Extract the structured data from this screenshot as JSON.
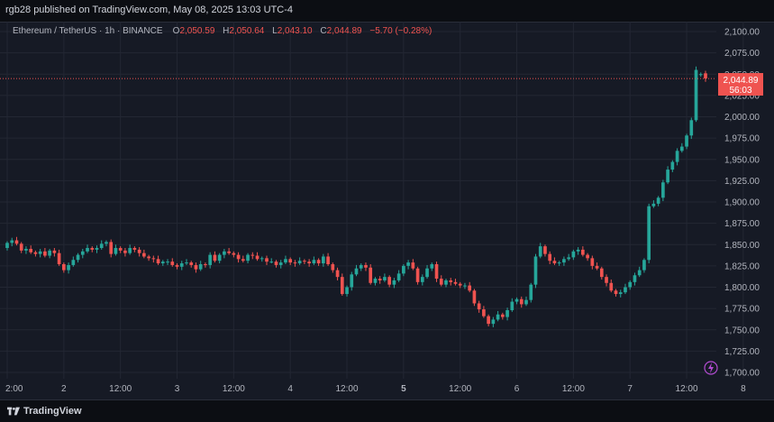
{
  "header": {
    "published": "rgb28 published on TradingView.com, May 08, 2025 13:03 UTC-4"
  },
  "symbol": {
    "name": "Ethereum / TetherUS · 1h · BINANCE",
    "o_label": "O",
    "o_value": "2,050.59",
    "h_label": "H",
    "h_value": "2,050.64",
    "l_label": "L",
    "l_value": "2,043.10",
    "c_label": "C",
    "c_value": "2,044.89",
    "change": "−5.70 (−0.28%)"
  },
  "price_tag": {
    "price": "2,044.89",
    "countdown": "56:03"
  },
  "footer": {
    "brand": "TradingView"
  },
  "colors": {
    "up": "#26a69a",
    "down": "#ef5350",
    "background": "#161a25",
    "grid": "#232733"
  },
  "icons": {
    "lightning": "lightning-icon"
  },
  "chart_data": {
    "type": "candlestick",
    "title": "",
    "xlabel": "",
    "ylabel": "",
    "ylim": [
      1690,
      2110
    ],
    "y_ticks": [
      "2,100.00",
      "2,075.00",
      "2,050.00",
      "2,025.00",
      "2,000.00",
      "1,975.00",
      "1,950.00",
      "1,925.00",
      "1,900.00",
      "1,875.00",
      "1,850.00",
      "1,825.00",
      "1,800.00",
      "1,775.00",
      "1,750.00",
      "1,725.00",
      "1,700.00"
    ],
    "y_tick_values": [
      2100,
      2075,
      2050,
      2025,
      2000,
      1975,
      1950,
      1925,
      1900,
      1875,
      1850,
      1825,
      1800,
      1775,
      1750,
      1725,
      1700
    ],
    "x_ticks": [
      "2:00",
      "2",
      "12:00",
      "3",
      "12:00",
      "4",
      "12:00",
      "5",
      "12:00",
      "6",
      "12:00",
      "7",
      "12:00",
      "8",
      "12:00"
    ],
    "x_tick_bold": [
      false,
      false,
      false,
      false,
      false,
      false,
      false,
      true,
      false,
      false,
      false,
      false,
      false,
      false,
      false
    ],
    "x_tick_bars": [
      0,
      12,
      24,
      36,
      48,
      60,
      72,
      84,
      96,
      108,
      120,
      132,
      144,
      156,
      168
    ],
    "last_price": 2044.89,
    "close": [
      1852,
      1855,
      1851,
      1843,
      1845,
      1841,
      1839,
      1842,
      1837,
      1843,
      1840,
      1827,
      1820,
      1826,
      1832,
      1838,
      1842,
      1846,
      1844,
      1846,
      1851,
      1853,
      1839,
      1846,
      1843,
      1840,
      1846,
      1844,
      1840,
      1836,
      1834,
      1833,
      1828,
      1830,
      1830,
      1826,
      1824,
      1828,
      1829,
      1826,
      1821,
      1827,
      1826,
      1838,
      1831,
      1838,
      1842,
      1840,
      1838,
      1833,
      1831,
      1838,
      1837,
      1833,
      1834,
      1830,
      1830,
      1826,
      1829,
      1833,
      1829,
      1828,
      1831,
      1830,
      1828,
      1832,
      1828,
      1836,
      1827,
      1820,
      1812,
      1792,
      1800,
      1815,
      1822,
      1826,
      1823,
      1805,
      1810,
      1808,
      1812,
      1803,
      1808,
      1816,
      1825,
      1829,
      1822,
      1806,
      1812,
      1822,
      1827,
      1810,
      1803,
      1808,
      1806,
      1804,
      1802,
      1802,
      1796,
      1781,
      1774,
      1766,
      1757,
      1762,
      1768,
      1765,
      1773,
      1783,
      1786,
      1780,
      1785,
      1803,
      1836,
      1848,
      1839,
      1831,
      1828,
      1829,
      1833,
      1835,
      1842,
      1844,
      1838,
      1834,
      1825,
      1822,
      1812,
      1805,
      1796,
      1792,
      1794,
      1800,
      1806,
      1814,
      1820,
      1832,
      1895,
      1898,
      1905,
      1923,
      1938,
      1947,
      1960,
      1965,
      1978,
      1996,
      2055,
      2050,
      2045
    ],
    "open": [
      1846,
      1852,
      1855,
      1851,
      1843,
      1845,
      1841,
      1839,
      1842,
      1837,
      1843,
      1840,
      1827,
      1820,
      1826,
      1832,
      1838,
      1842,
      1846,
      1844,
      1846,
      1851,
      1853,
      1839,
      1846,
      1843,
      1840,
      1846,
      1844,
      1840,
      1836,
      1834,
      1833,
      1828,
      1830,
      1830,
      1826,
      1824,
      1828,
      1829,
      1826,
      1821,
      1827,
      1826,
      1838,
      1831,
      1838,
      1842,
      1840,
      1838,
      1833,
      1831,
      1838,
      1837,
      1833,
      1834,
      1830,
      1830,
      1826,
      1829,
      1833,
      1829,
      1828,
      1831,
      1830,
      1828,
      1832,
      1828,
      1836,
      1827,
      1820,
      1812,
      1792,
      1800,
      1815,
      1822,
      1826,
      1823,
      1805,
      1810,
      1808,
      1812,
      1803,
      1808,
      1816,
      1825,
      1829,
      1822,
      1806,
      1812,
      1822,
      1827,
      1810,
      1803,
      1808,
      1806,
      1804,
      1802,
      1802,
      1796,
      1781,
      1774,
      1766,
      1757,
      1762,
      1768,
      1765,
      1773,
      1783,
      1786,
      1780,
      1785,
      1803,
      1836,
      1848,
      1839,
      1831,
      1828,
      1829,
      1833,
      1835,
      1842,
      1844,
      1838,
      1834,
      1825,
      1822,
      1812,
      1805,
      1796,
      1792,
      1794,
      1800,
      1806,
      1814,
      1820,
      1832,
      1895,
      1898,
      1905,
      1923,
      1938,
      1947,
      1960,
      1965,
      1978,
      1996,
      2050,
      2051
    ]
  }
}
